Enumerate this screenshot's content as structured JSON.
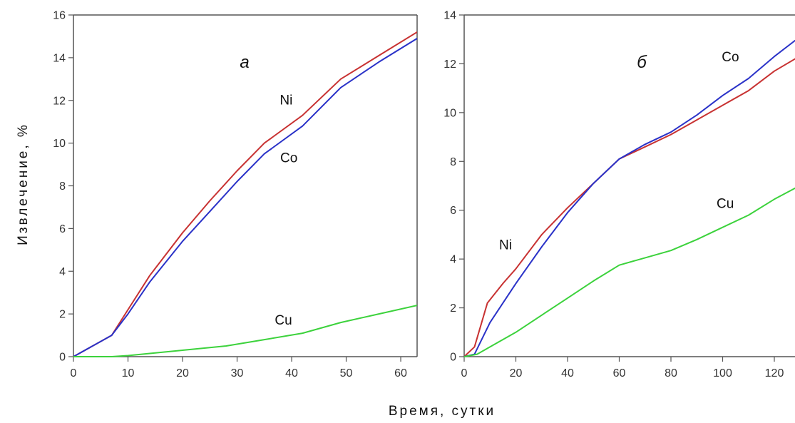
{
  "xlabel": "Время, сутки",
  "ylabel": "Извлечение, %",
  "colors": {
    "Ni": "#c83232",
    "Co": "#2a32c8",
    "Cu": "#3cd23c"
  },
  "chart_data": [
    {
      "type": "line",
      "panel_label": "а",
      "xlim": [
        0,
        63
      ],
      "ylim": [
        0,
        16
      ],
      "xticks": [
        0,
        10,
        20,
        30,
        40,
        50,
        60
      ],
      "yticks": [
        0,
        2,
        4,
        6,
        8,
        10,
        12,
        14,
        16
      ],
      "series": [
        {
          "name": "Ni",
          "x": [
            0,
            7,
            10,
            14,
            20,
            25,
            30,
            35,
            42,
            49,
            56,
            63
          ],
          "y": [
            0,
            1.0,
            2.2,
            3.8,
            5.8,
            7.3,
            8.7,
            10.0,
            11.3,
            13.0,
            14.1,
            15.2
          ]
        },
        {
          "name": "Co",
          "x": [
            0,
            7,
            10,
            14,
            20,
            25,
            30,
            35,
            42,
            49,
            56,
            63
          ],
          "y": [
            0,
            1.0,
            2.0,
            3.5,
            5.4,
            6.8,
            8.2,
            9.5,
            10.8,
            12.6,
            13.8,
            14.9
          ]
        },
        {
          "name": "Cu",
          "x": [
            0,
            7,
            10,
            14,
            20,
            28,
            35,
            42,
            49,
            56,
            63
          ],
          "y": [
            0,
            0,
            0.05,
            0.15,
            0.3,
            0.5,
            0.8,
            1.1,
            1.6,
            2.0,
            2.4
          ]
        }
      ],
      "annotations": [
        {
          "text": "Ni",
          "x": 39,
          "y": 11.8
        },
        {
          "text": "Co",
          "x": 39.5,
          "y": 9.1
        },
        {
          "text": "Cu",
          "x": 38.5,
          "y": 1.5
        }
      ]
    },
    {
      "type": "line",
      "panel_label": "б",
      "xlim": [
        0,
        128
      ],
      "ylim": [
        0,
        14
      ],
      "xticks": [
        0,
        20,
        40,
        60,
        80,
        100,
        120
      ],
      "yticks": [
        0,
        2,
        4,
        6,
        8,
        10,
        12,
        14
      ],
      "series": [
        {
          "name": "Ni",
          "x": [
            0,
            4,
            9,
            15,
            20,
            30,
            40,
            50,
            60,
            70,
            80,
            90,
            100,
            110,
            120,
            128
          ],
          "y": [
            0,
            0.4,
            2.2,
            3.0,
            3.6,
            5.0,
            6.1,
            7.1,
            8.1,
            8.6,
            9.1,
            9.7,
            10.3,
            10.9,
            11.7,
            12.2
          ]
        },
        {
          "name": "Co",
          "x": [
            0,
            4,
            10,
            20,
            30,
            40,
            50,
            60,
            70,
            80,
            90,
            100,
            110,
            120,
            128
          ],
          "y": [
            0,
            0.1,
            1.4,
            3.0,
            4.5,
            5.9,
            7.1,
            8.1,
            8.7,
            9.2,
            9.9,
            10.7,
            11.4,
            12.3,
            12.95
          ]
        },
        {
          "name": "Cu",
          "x": [
            0,
            5,
            10,
            20,
            30,
            40,
            50,
            60,
            70,
            80,
            90,
            100,
            110,
            120,
            128
          ],
          "y": [
            0,
            0.1,
            0.4,
            1.0,
            1.7,
            2.4,
            3.1,
            3.75,
            4.05,
            4.35,
            4.8,
            5.3,
            5.8,
            6.45,
            6.9
          ]
        }
      ],
      "annotations": [
        {
          "text": "Co",
          "x": 103,
          "y": 12.1
        },
        {
          "text": "Cu",
          "x": 101,
          "y": 6.1
        },
        {
          "text": "Ni",
          "x": 16,
          "y": 4.4
        }
      ]
    }
  ]
}
